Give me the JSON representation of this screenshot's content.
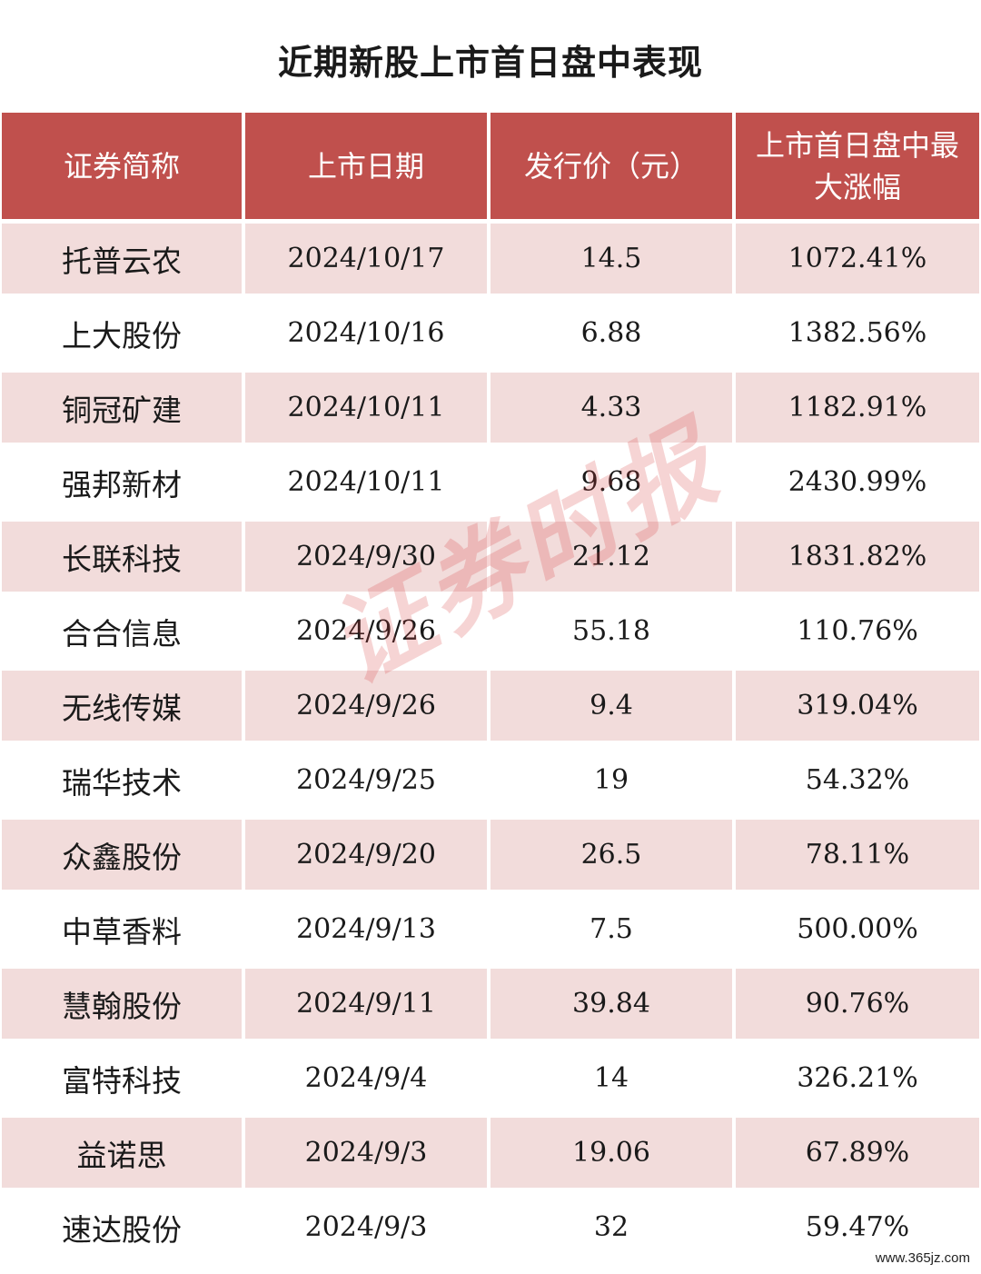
{
  "title": "近期新股上市首日盘中表现",
  "columns": [
    "证券简称",
    "上市日期",
    "发行价（元）",
    "上市首日盘中最大涨幅"
  ],
  "rows": [
    [
      "托普云农",
      "2024/10/17",
      "14.5",
      "1072.41%"
    ],
    [
      "上大股份",
      "2024/10/16",
      "6.88",
      "1382.56%"
    ],
    [
      "铜冠矿建",
      "2024/10/11",
      "4.33",
      "1182.91%"
    ],
    [
      "强邦新材",
      "2024/10/11",
      "9.68",
      "2430.99%"
    ],
    [
      "长联科技",
      "2024/9/30",
      "21.12",
      "1831.82%"
    ],
    [
      "合合信息",
      "2024/9/26",
      "55.18",
      "110.76%"
    ],
    [
      "无线传媒",
      "2024/9/26",
      "9.4",
      "319.04%"
    ],
    [
      "瑞华技术",
      "2024/9/25",
      "19",
      "54.32%"
    ],
    [
      "众鑫股份",
      "2024/9/20",
      "26.5",
      "78.11%"
    ],
    [
      "中草香料",
      "2024/9/13",
      "7.5",
      "500.00%"
    ],
    [
      "慧翰股份",
      "2024/9/11",
      "39.84",
      "90.76%"
    ],
    [
      "富特科技",
      "2024/9/4",
      "14",
      "326.21%"
    ],
    [
      "益诺思",
      "2024/9/3",
      "19.06",
      "67.89%"
    ],
    [
      "速达股份",
      "2024/9/3",
      "32",
      "59.47%"
    ]
  ],
  "watermark": "证券时报",
  "site_mark": "www.365jz.com",
  "colors": {
    "header_bg": "#c0504d",
    "header_text": "#ffffff",
    "stripe": "#f2dcdb"
  }
}
